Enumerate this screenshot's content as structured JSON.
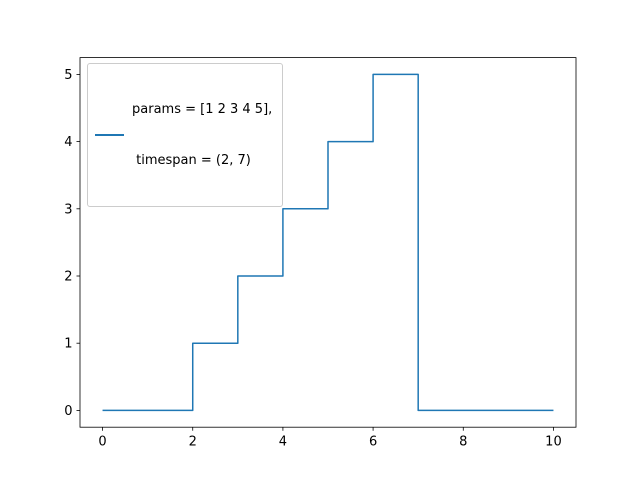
{
  "figure": {
    "background": "#ffffff"
  },
  "chart_data": {
    "type": "line",
    "style": "step-post",
    "title": "",
    "xlabel": "",
    "ylabel": "",
    "x": [
      0,
      2,
      3,
      4,
      5,
      6,
      7,
      10
    ],
    "y": [
      0,
      1,
      2,
      3,
      4,
      5,
      0,
      0
    ],
    "xlim": [
      -0.5,
      10.5
    ],
    "ylim": [
      -0.25,
      5.25
    ],
    "xticks": [
      0,
      2,
      4,
      6,
      8,
      10
    ],
    "yticks": [
      0,
      1,
      2,
      3,
      4,
      5
    ],
    "grid": false,
    "line_color": "#1f77b4",
    "line_width": 1.5,
    "spine_color": "#000000",
    "tick_label_color": "#000000",
    "legend": {
      "position": "upper left",
      "lines": [
        "params = [1 2 3 4 5],",
        " timespan = (2, 7)"
      ],
      "label": "params = [1 2 3 4 5],\n timespan = (2, 7)",
      "border_color": "#cccccc",
      "background": "#ffffff"
    }
  }
}
